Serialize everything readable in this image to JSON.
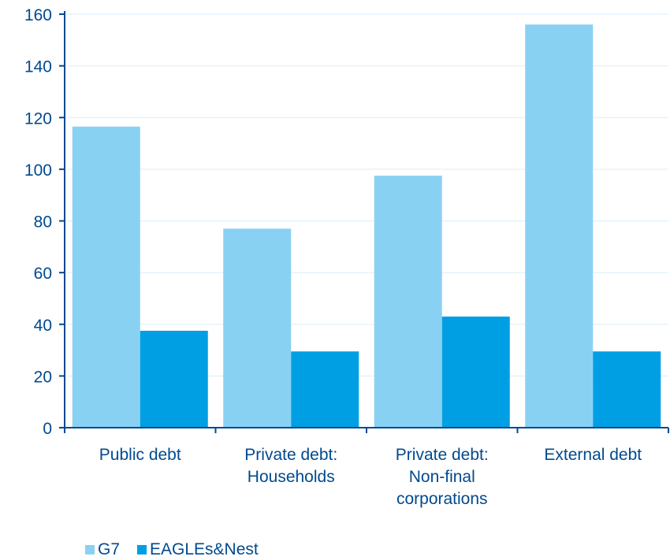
{
  "chart_data": {
    "type": "bar",
    "categories": [
      [
        "Public debt"
      ],
      [
        "Private debt:",
        "Households"
      ],
      [
        "Private debt:",
        "Non-final",
        "corporations"
      ],
      [
        "External debt"
      ]
    ],
    "series": [
      {
        "name": "G7",
        "values": [
          116.5,
          77,
          97.5,
          156
        ],
        "color": "#89d1f3"
      },
      {
        "name": "EAGLEs&Nest",
        "values": [
          37.5,
          29.5,
          43,
          29.5
        ],
        "color": "#009fe3"
      }
    ],
    "ylim": [
      0,
      160
    ],
    "yticks": [
      0,
      20,
      40,
      60,
      80,
      100,
      120,
      140,
      160
    ],
    "grid": true,
    "legend_position": "bottom-left",
    "axis_color": "#004a8f",
    "grid_color": "#d9eef9"
  }
}
